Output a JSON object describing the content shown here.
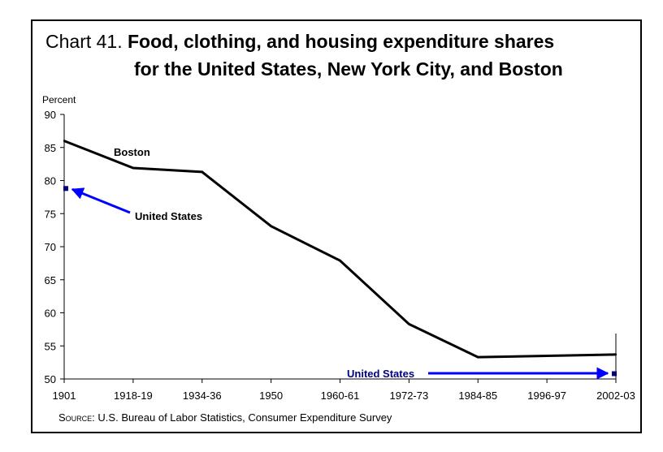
{
  "title": {
    "prefix": "Chart 41.",
    "line1": "Food, clothing, and housing expenditure shares",
    "line2": "for the United States, New York City, and Boston"
  },
  "source": {
    "label": "Source:",
    "text": "U.S. Bureau of Labor Statistics, Consumer Expenditure Survey"
  },
  "colors": {
    "boston_line": "#000000",
    "us_marker": "#000080",
    "arrow": "#0000ff",
    "us_label_bottom": "#000080"
  },
  "chart_data": {
    "type": "line",
    "title": "Food, clothing, and housing expenditure shares for the United States, New York City, and Boston",
    "ylabel": "Percent",
    "xlabel": "",
    "ylim": [
      50,
      90
    ],
    "yticks": [
      50,
      55,
      60,
      65,
      70,
      75,
      80,
      85,
      90
    ],
    "categories": [
      "1901",
      "1918-19",
      "1934-36",
      "1950",
      "1960-61",
      "1972-73",
      "1984-85",
      "1996-97",
      "2002-03"
    ],
    "series": [
      {
        "name": "Boston",
        "points": [
          {
            "x": "1901",
            "y": 86.0
          },
          {
            "x": "1918-19",
            "y": 81.9
          },
          {
            "x": "1934-36",
            "y": 81.3
          },
          {
            "x": "1950",
            "y": 73.1
          },
          {
            "x": "1960-61",
            "y": 67.9
          },
          {
            "x": "1972-73",
            "y": 58.3
          },
          {
            "x": "1984-85",
            "y": 53.3
          },
          {
            "x": "2002-03",
            "y": 53.7
          }
        ]
      },
      {
        "name": "United States",
        "points": [
          {
            "x": "1901",
            "y": 78.8
          },
          {
            "x": "2002-03",
            "y": 50.8
          }
        ]
      }
    ],
    "annotations": [
      {
        "text": "Boston"
      },
      {
        "text": "United States"
      },
      {
        "text": "United States"
      }
    ],
    "grid": false
  }
}
